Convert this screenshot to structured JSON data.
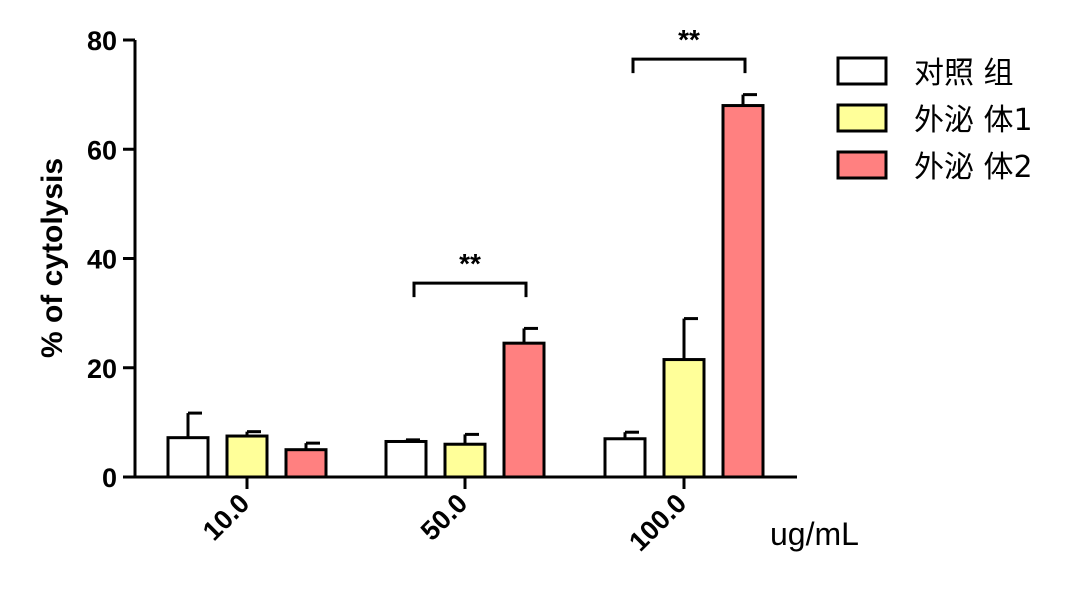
{
  "chart_data": {
    "type": "bar",
    "ylabel": "% of cytolysis",
    "xunit": "ug/mL",
    "ylim": [
      0,
      80
    ],
    "yticks": [
      0,
      20,
      40,
      60,
      80
    ],
    "grid": false,
    "legend_position": "top-right",
    "categories": [
      "10.0",
      "50.0",
      "100.0"
    ],
    "series": [
      {
        "name": "对照 组",
        "color": "#ffffff",
        "values": [
          7.2,
          6.5,
          7.0
        ],
        "errors": [
          4.5,
          0.3,
          1.2
        ]
      },
      {
        "name": "外泌 体1",
        "color": "#ffff99",
        "values": [
          7.5,
          6.0,
          21.5
        ],
        "errors": [
          0.8,
          1.8,
          7.5
        ]
      },
      {
        "name": "外泌 体2",
        "color": "#ff8080",
        "values": [
          5.0,
          24.5,
          68.0
        ],
        "errors": [
          1.2,
          2.7,
          2.0
        ]
      }
    ],
    "annotations": [
      {
        "text": "**",
        "category_index": 1,
        "from_series": 0,
        "to_series": 2,
        "y": 35.5
      },
      {
        "text": "**",
        "category_index": 2,
        "from_series": 0,
        "to_series": 2,
        "y": 76.5
      }
    ]
  }
}
